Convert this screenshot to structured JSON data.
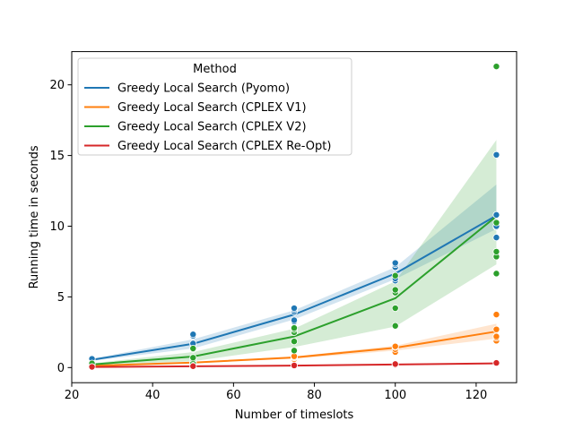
{
  "chart_data": {
    "type": "line",
    "xlabel": "Number of timeslots",
    "ylabel": "Running time in seconds",
    "xlim": [
      20,
      130
    ],
    "ylim": [
      -1.07,
      22.35
    ],
    "xticks": [
      20,
      40,
      60,
      80,
      100,
      120
    ],
    "yticks": [
      0,
      5,
      10,
      15,
      20
    ],
    "x": [
      25,
      50,
      75,
      100,
      125
    ],
    "legend": {
      "title": "Method",
      "position": "upper-left"
    },
    "series": [
      {
        "name": "Greedy Local Search (Pyomo)",
        "color": "#1f77b4",
        "mean": [
          0.55,
          1.68,
          3.75,
          6.65,
          10.75
        ],
        "ci_low": [
          0.47,
          1.35,
          3.4,
          6.25,
          9.8
        ],
        "ci_high": [
          0.62,
          2.0,
          4.05,
          7.1,
          12.95
        ],
        "points": [
          [
            25,
            0.45
          ],
          [
            25,
            0.5
          ],
          [
            25,
            0.55
          ],
          [
            25,
            0.6
          ],
          [
            25,
            0.62
          ],
          [
            50,
            1.3
          ],
          [
            50,
            1.65
          ],
          [
            50,
            1.7
          ],
          [
            50,
            2.25
          ],
          [
            50,
            2.35
          ],
          [
            75,
            3.25
          ],
          [
            75,
            3.35
          ],
          [
            75,
            3.95
          ],
          [
            75,
            4.1
          ],
          [
            75,
            4.2
          ],
          [
            100,
            6.15
          ],
          [
            100,
            6.3
          ],
          [
            100,
            7.1
          ],
          [
            100,
            7.3
          ],
          [
            100,
            7.4
          ],
          [
            125,
            9.2
          ],
          [
            125,
            9.95
          ],
          [
            125,
            10.0
          ],
          [
            125,
            10.8
          ],
          [
            125,
            15.05
          ]
        ]
      },
      {
        "name": "Greedy Local Search (CPLEX V1)",
        "color": "#ff7f0e",
        "mean": [
          0.13,
          0.35,
          0.72,
          1.4,
          2.55
        ],
        "ci_low": [
          0.11,
          0.31,
          0.62,
          1.2,
          2.05
        ],
        "ci_high": [
          0.15,
          0.39,
          0.78,
          1.55,
          3.1
        ],
        "points": [
          [
            25,
            0.12
          ],
          [
            25,
            0.13
          ],
          [
            25,
            0.14
          ],
          [
            50,
            0.3
          ],
          [
            50,
            0.35
          ],
          [
            50,
            0.38
          ],
          [
            75,
            0.6
          ],
          [
            75,
            0.7
          ],
          [
            75,
            0.75
          ],
          [
            75,
            0.8
          ],
          [
            100,
            1.1
          ],
          [
            100,
            1.3
          ],
          [
            100,
            1.45
          ],
          [
            100,
            1.5
          ],
          [
            125,
            1.9
          ],
          [
            125,
            2.1
          ],
          [
            125,
            2.2
          ],
          [
            125,
            2.7
          ],
          [
            125,
            3.75
          ]
        ]
      },
      {
        "name": "Greedy Local Search (CPLEX V2)",
        "color": "#2ca02c",
        "mean": [
          0.22,
          0.78,
          2.2,
          4.9,
          10.7
        ],
        "ci_low": [
          0.16,
          0.45,
          1.45,
          2.9,
          7.3
        ],
        "ci_high": [
          0.3,
          1.1,
          2.75,
          6.1,
          16.1
        ],
        "points": [
          [
            25,
            0.1
          ],
          [
            25,
            0.18
          ],
          [
            25,
            0.22
          ],
          [
            25,
            0.28
          ],
          [
            25,
            0.3
          ],
          [
            50,
            0.3
          ],
          [
            50,
            0.6
          ],
          [
            50,
            0.7
          ],
          [
            50,
            1.3
          ],
          [
            50,
            1.35
          ],
          [
            75,
            1.2
          ],
          [
            75,
            1.85
          ],
          [
            75,
            2.5
          ],
          [
            75,
            2.7
          ],
          [
            75,
            2.8
          ],
          [
            100,
            2.95
          ],
          [
            100,
            4.2
          ],
          [
            100,
            5.3
          ],
          [
            100,
            5.5
          ],
          [
            100,
            6.5
          ],
          [
            125,
            6.65
          ],
          [
            125,
            7.85
          ],
          [
            125,
            8.2
          ],
          [
            125,
            10.25
          ],
          [
            125,
            21.3
          ]
        ]
      },
      {
        "name": "Greedy Local Search (CPLEX Re-Opt)",
        "color": "#d62728",
        "mean": [
          0.04,
          0.09,
          0.14,
          0.22,
          0.3
        ],
        "ci_low": [
          0.03,
          0.08,
          0.12,
          0.2,
          0.27
        ],
        "ci_high": [
          0.05,
          0.1,
          0.16,
          0.24,
          0.33
        ],
        "points": [
          [
            25,
            0.03
          ],
          [
            25,
            0.04
          ],
          [
            25,
            0.05
          ],
          [
            50,
            0.08
          ],
          [
            50,
            0.1
          ],
          [
            75,
            0.12
          ],
          [
            75,
            0.15
          ],
          [
            100,
            0.2
          ],
          [
            100,
            0.25
          ],
          [
            125,
            0.28
          ],
          [
            125,
            0.3
          ],
          [
            125,
            0.33
          ]
        ]
      }
    ]
  }
}
